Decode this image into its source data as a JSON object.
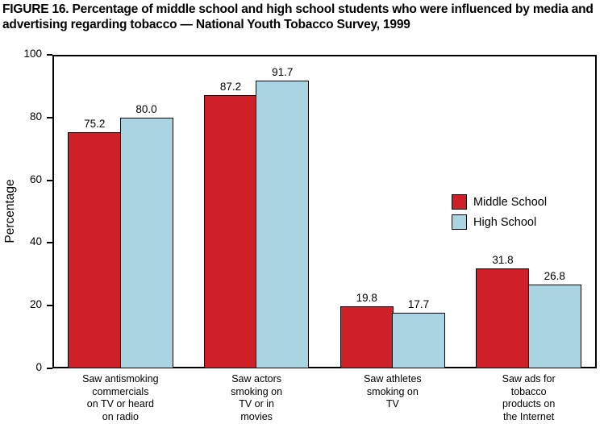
{
  "title": "FIGURE 16. Percentage of middle school and high school students who were influenced by media and advertising regarding tobacco — National Youth Tobacco Survey, 1999",
  "chart_data": {
    "type": "bar",
    "title": "Percentage of middle school and high school students who were influenced by media and advertising regarding tobacco — National Youth Tobacco Survey, 1999",
    "xlabel": "",
    "ylabel": "Percentage",
    "ylim": [
      0,
      100
    ],
    "ytick_step": 20,
    "grid": false,
    "legend_position": "right-inside",
    "categories": [
      "Saw antismoking commercials on TV or heard on radio",
      "Saw actors smoking on TV or in movies",
      "Saw athletes smoking on TV",
      "Saw ads for tobacco products on the Internet"
    ],
    "category_label_lines": [
      [
        "Saw antismoking",
        "commercials",
        "on TV or heard",
        "on radio"
      ],
      [
        "Saw actors",
        "smoking on",
        "TV or in",
        "movies"
      ],
      [
        "Saw athletes",
        "smoking on",
        "TV"
      ],
      [
        "Saw ads for",
        "tobacco",
        "products on",
        "the Internet"
      ]
    ],
    "series": [
      {
        "name": "Middle School",
        "color": "#d02027",
        "values": [
          75.2,
          87.2,
          19.8,
          31.8
        ]
      },
      {
        "name": "High School",
        "color": "#a9d5e2",
        "values": [
          80.0,
          91.7,
          17.7,
          26.8
        ]
      }
    ],
    "colors": {
      "axis": "#000000",
      "background": "#ffffff"
    }
  }
}
